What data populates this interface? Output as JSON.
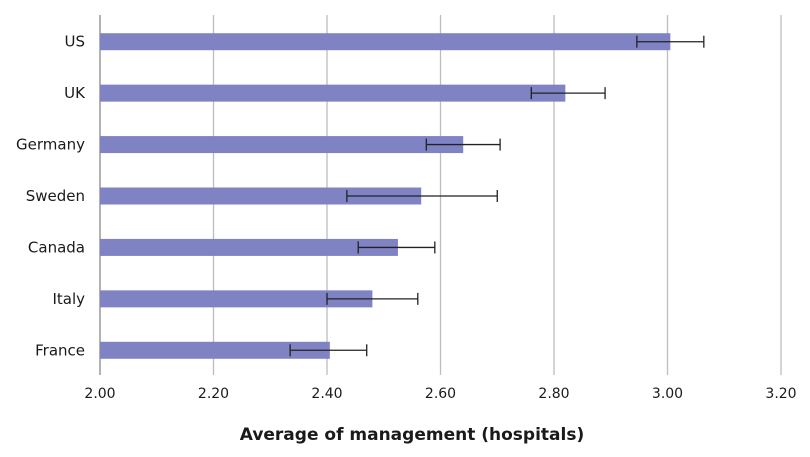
{
  "chart_data": {
    "type": "bar",
    "orientation": "horizontal",
    "title": "",
    "xlabel": "Average of management (hospitals)",
    "ylabel": "",
    "xlim": [
      2.0,
      3.2
    ],
    "xticks": [
      "2.00",
      "2.20",
      "2.40",
      "2.60",
      "2.80",
      "3.00",
      "3.20"
    ],
    "grid": true,
    "bar_color": "#7f83c4",
    "errorbar_color": "#222222",
    "categories": [
      "US",
      "UK",
      "Germany",
      "Sweden",
      "Canada",
      "Italy",
      "France"
    ],
    "values": [
      3.005,
      2.82,
      2.64,
      2.566,
      2.525,
      2.48,
      2.405
    ],
    "error_low": [
      2.946,
      2.76,
      2.575,
      2.435,
      2.455,
      2.4,
      2.335
    ],
    "error_high": [
      3.064,
      2.89,
      2.705,
      2.7,
      2.59,
      2.56,
      2.47
    ]
  }
}
